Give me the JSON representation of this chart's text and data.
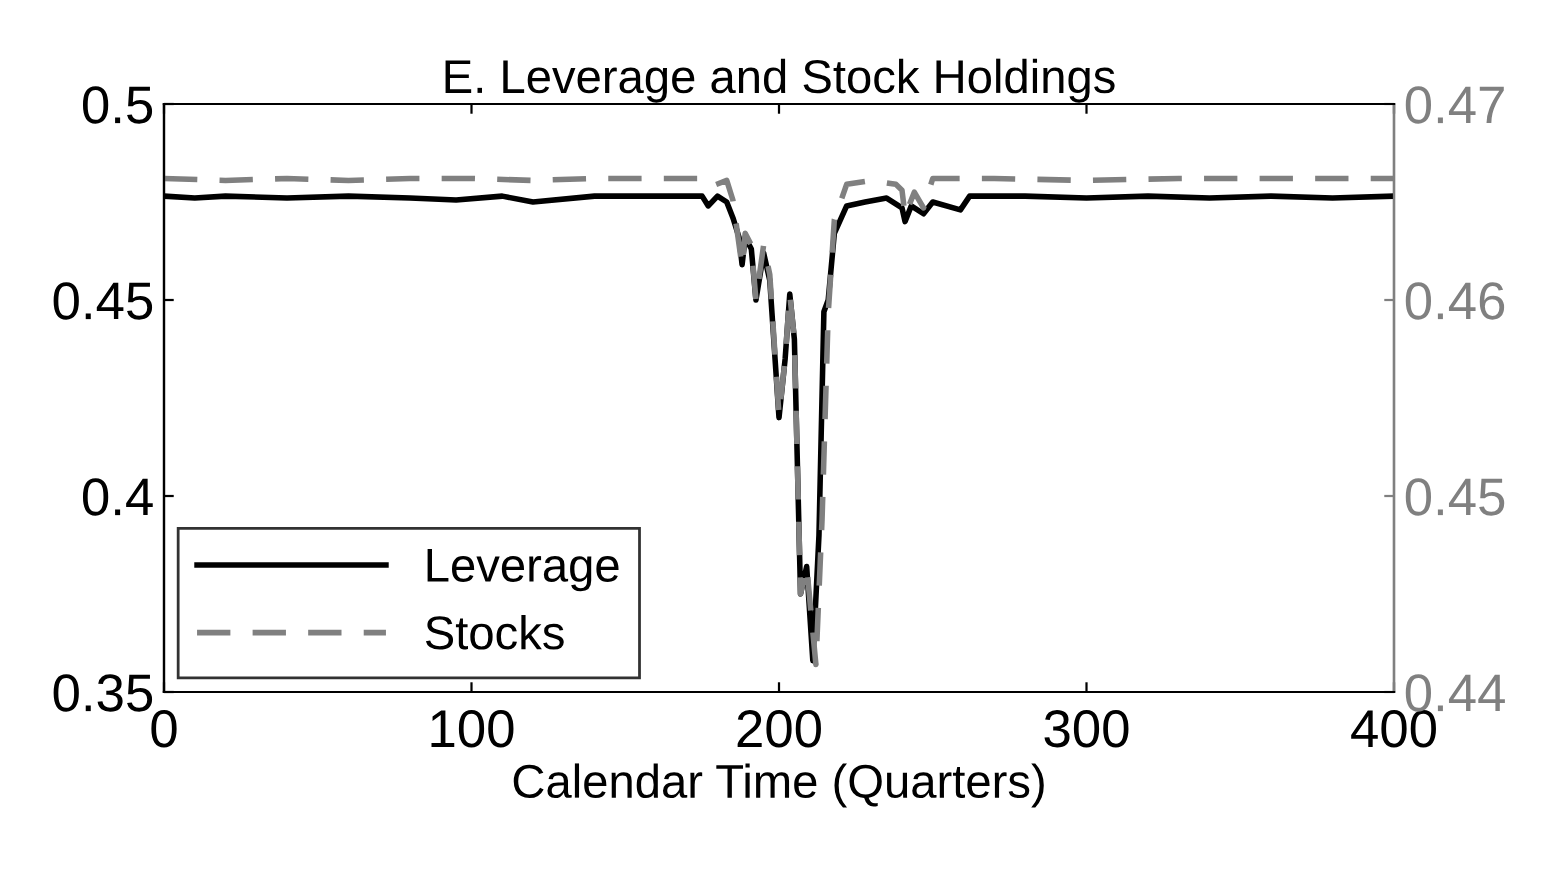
{
  "chart_data": {
    "type": "line",
    "title": "E. Leverage and Stock Holdings",
    "xlabel": "Calendar Time (Quarters)",
    "xlim": [
      0,
      400
    ],
    "xticks": [
      0,
      100,
      200,
      300,
      400
    ],
    "ylim": [
      0.35,
      0.5
    ],
    "yticks": [
      0.35,
      0.4,
      0.45,
      0.5
    ],
    "y2lim": [
      0.44,
      0.47
    ],
    "y2ticks": [
      0.44,
      0.45,
      0.46,
      0.47
    ],
    "legend": "bottom left",
    "grid": false,
    "series": [
      {
        "name": "Leverage",
        "color": "#000000",
        "line_style": "solid",
        "x": [
          0,
          10,
          20,
          40,
          60,
          80,
          95,
          110,
          120,
          140,
          160,
          175,
          177,
          180,
          183,
          185,
          187,
          188,
          189,
          191,
          192.5,
          195,
          197,
          200,
          202,
          203.5,
          205,
          207,
          209,
          211,
          213,
          214.6,
          216,
          218,
          222,
          228,
          235,
          240,
          241,
          243,
          247,
          250,
          259,
          262,
          280,
          300,
          320,
          340,
          360,
          380,
          400
        ],
        "values": [
          0.4765,
          0.476,
          0.4765,
          0.476,
          0.4765,
          0.476,
          0.4755,
          0.4765,
          0.475,
          0.4765,
          0.4765,
          0.4765,
          0.474,
          0.4765,
          0.475,
          0.471,
          0.466,
          0.459,
          0.466,
          0.463,
          0.45,
          0.462,
          0.455,
          0.42,
          0.435,
          0.4515,
          0.44,
          0.375,
          0.382,
          0.358,
          0.39,
          0.447,
          0.45,
          0.467,
          0.474,
          0.475,
          0.476,
          0.4735,
          0.47,
          0.474,
          0.472,
          0.475,
          0.473,
          0.4765,
          0.4765,
          0.476,
          0.4765,
          0.476,
          0.4765,
          0.476,
          0.4765
        ]
      },
      {
        "name": "Stocks",
        "color": "#808080",
        "line_style": "dashed",
        "axis": "y2",
        "x": [
          0,
          20,
          40,
          60,
          80,
          100,
          120,
          140,
          160,
          175,
          178,
          183,
          185,
          188,
          189,
          191,
          192.5,
          195,
          197,
          200,
          202,
          203.5,
          205,
          207,
          209,
          212,
          214,
          216,
          218,
          222,
          230,
          238,
          240,
          241,
          244,
          247,
          250,
          270,
          300,
          330,
          360,
          400
        ],
        "values": [
          0.4662,
          0.4661,
          0.4662,
          0.4661,
          0.4662,
          0.4662,
          0.4661,
          0.4662,
          0.4662,
          0.4662,
          0.4658,
          0.4661,
          0.4651,
          0.4617,
          0.4634,
          0.4628,
          0.46,
          0.4628,
          0.4613,
          0.4541,
          0.457,
          0.4603,
          0.458,
          0.445,
          0.4464,
          0.4414,
          0.4488,
          0.4593,
          0.4641,
          0.4659,
          0.4661,
          0.4659,
          0.4656,
          0.4643,
          0.4655,
          0.4647,
          0.4662,
          0.4662,
          0.4661,
          0.4662,
          0.4662,
          0.4662
        ]
      }
    ]
  }
}
